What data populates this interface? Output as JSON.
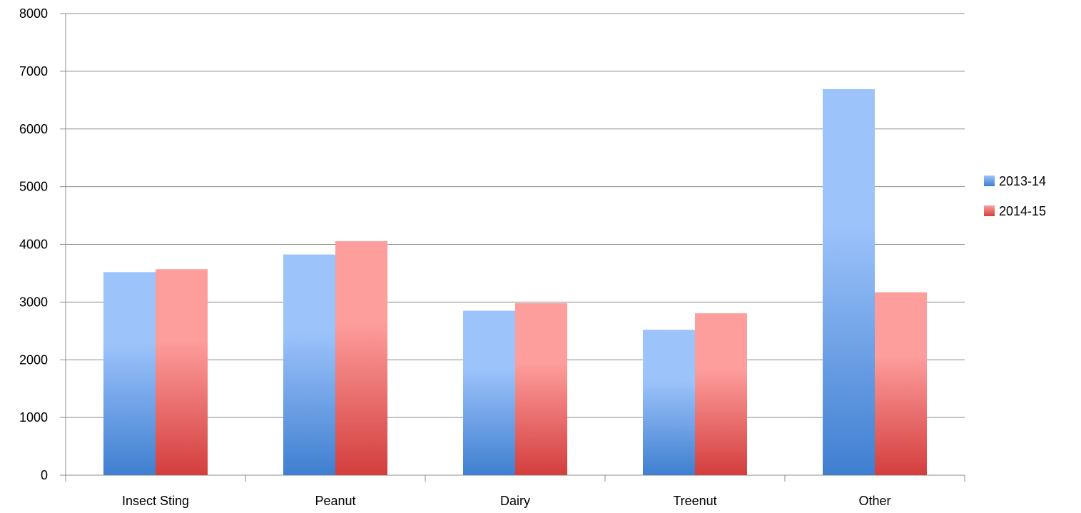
{
  "chart_data": {
    "type": "bar",
    "title": "",
    "xlabel": "",
    "ylabel": "",
    "categories": [
      "Insect Sting",
      "Peanut",
      "Dairy",
      "Treenut",
      "Other"
    ],
    "series": [
      {
        "name": "2013-14",
        "values": [
          3520,
          3825,
          2850,
          2520,
          6690
        ],
        "color_light": "#9dc3fb",
        "color_dark": "#3f7fd0"
      },
      {
        "name": "2014-15",
        "values": [
          3570,
          4055,
          2980,
          2805,
          3170
        ],
        "color_light": "#fd9d9c",
        "color_dark": "#d33e3d"
      }
    ],
    "ylim": [
      0,
      8000
    ],
    "yticks": [
      "0",
      "1000",
      "2000",
      "3000",
      "4000",
      "5000",
      "6000",
      "7000",
      "8000"
    ],
    "grid": true,
    "legend_position": "right",
    "gridline_color": "#8c8c8c"
  }
}
